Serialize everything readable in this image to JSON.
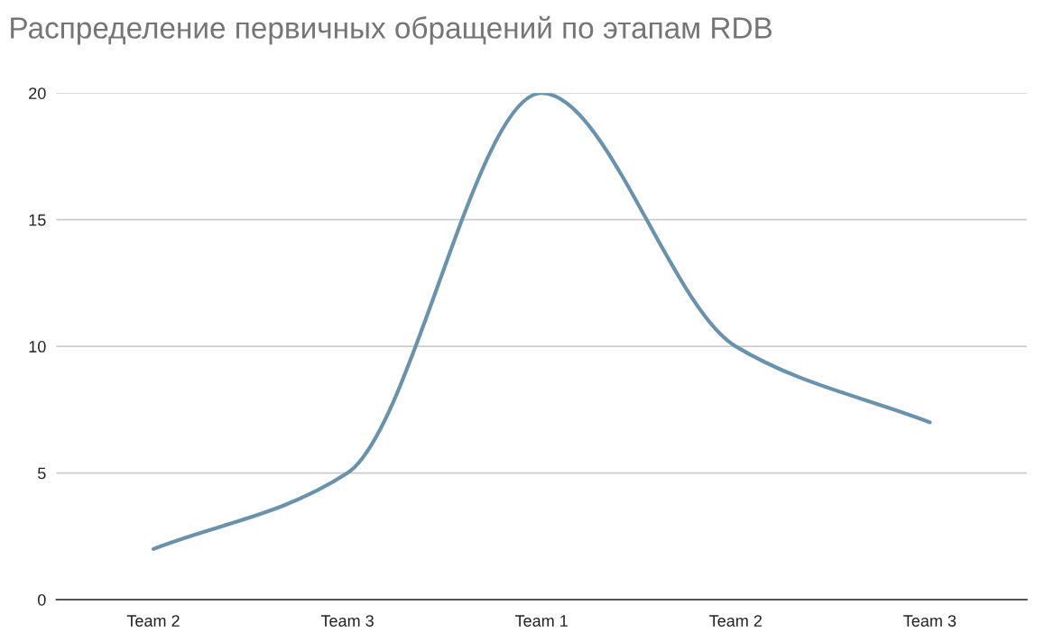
{
  "chart_data": {
    "type": "line",
    "title": "Распределение первичных обращений по этапам RDB",
    "categories": [
      "Team 2",
      "Team 3",
      "Team 1",
      "Team 2",
      "Team 3"
    ],
    "series": [
      {
        "color": "#6a93ab",
        "values": [
          2,
          5,
          20,
          10,
          7
        ]
      }
    ],
    "ylim": [
      0,
      20
    ],
    "yticks": [
      0,
      5,
      10,
      15,
      20
    ],
    "grid": "y"
  }
}
